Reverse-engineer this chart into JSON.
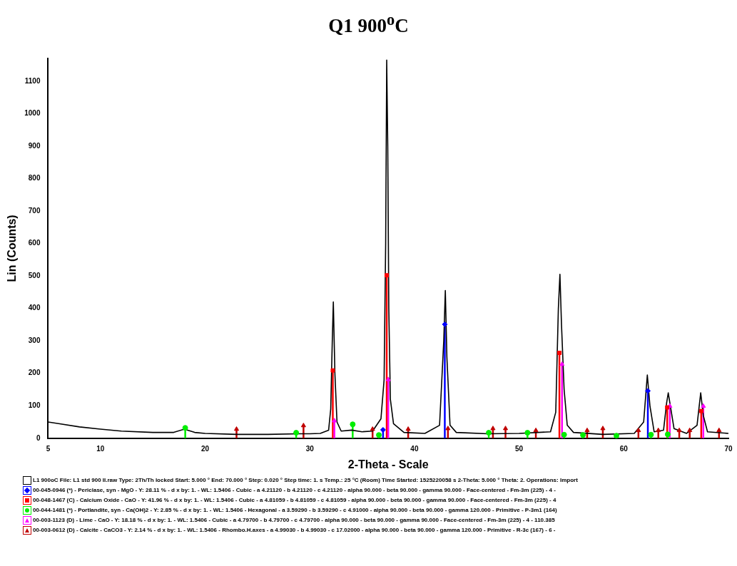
{
  "chart_data": {
    "type": "line",
    "title": "Q1 900$^{o}$C",
    "xlabel": "2-Theta - Scale",
    "ylabel": "Lin (Counts)",
    "xlim": [
      5,
      70
    ],
    "xticks": [
      5,
      10,
      20,
      30,
      40,
      50,
      60,
      70
    ],
    "ylim": [
      0,
      1170
    ],
    "yticks": [
      0,
      100,
      200,
      300,
      400,
      500,
      600,
      700,
      800,
      900,
      1000,
      1100
    ],
    "grid": false,
    "legend": "bottom",
    "series": [
      {
        "name": "L1 900oC   File: L1 std 900 II.raw   Type: 2Th/Th locked   Start: 5.000 °   End: 70.000 °   Step: 0.020 °   Step time: 1. s   Temp.: 25 °C (Room)   Time Started: 1525220058 s   2-Theta: 5.000 °   Theta: 2.   Operations: Import",
        "color": "#000000",
        "marker": "none",
        "x": [
          5,
          6,
          8,
          10,
          12,
          15,
          17,
          18,
          19,
          20,
          23,
          26,
          29,
          30,
          31,
          31.8,
          32,
          32.15,
          32.25,
          32.4,
          32.6,
          33,
          34,
          35,
          36,
          36.8,
          37.1,
          37.25,
          37.35,
          37.45,
          37.55,
          37.7,
          38,
          39,
          41,
          42.4,
          42.8,
          42.95,
          43.1,
          43.4,
          44,
          47,
          50,
          53,
          53.5,
          53.75,
          53.9,
          54.05,
          54.3,
          54.6,
          55.2,
          58,
          61,
          61.9,
          62.25,
          62.5,
          62.9,
          63.8,
          64.1,
          64.25,
          64.5,
          64.8,
          66,
          67,
          67.35,
          67.6,
          68,
          70
        ],
        "values": [
          50,
          45,
          35,
          28,
          22,
          18,
          18,
          28,
          18,
          15,
          12,
          12,
          14,
          14,
          15,
          25,
          90,
          300,
          420,
          200,
          50,
          22,
          25,
          20,
          22,
          60,
          180,
          600,
          1165,
          900,
          400,
          120,
          45,
          18,
          15,
          40,
          300,
          455,
          250,
          40,
          18,
          14,
          15,
          20,
          80,
          400,
          505,
          350,
          150,
          40,
          18,
          12,
          15,
          50,
          195,
          100,
          20,
          25,
          110,
          140,
          90,
          30,
          15,
          40,
          140,
          70,
          20,
          15
        ]
      },
      {
        "name": "00-045-0946 (*) - Periclase, syn - MgO - Y: 28.11 % - d x by: 1. - WL: 1.5406 - Cubic - a 4.21120 - b 4.21120 - c 4.21120 - alpha 90.000 - beta 90.000 - gamma 90.000 - Face-centered - Fm-3m (225) - 4 -",
        "type": "lollipop",
        "color": "#0000ff",
        "marker": "diamond",
        "x": [
          37.0,
          42.9,
          62.3
        ],
        "values": [
          26,
          351,
          146
        ]
      },
      {
        "name": "00-048-1467 (C) - Calcium Oxide - CaO - Y: 41.96 % - d x by: 1. - WL: 1.5406 - Cubic - a 4.81059 - b 4.81059 - c 4.81059 - alpha 90.000 - beta 90.000 - gamma 90.000 - Face-centered - Fm-3m (225) - 4",
        "type": "lollipop",
        "color": "#ff0000",
        "marker": "square",
        "x": [
          32.2,
          37.35,
          53.85,
          64.15,
          67.4
        ],
        "values": [
          209,
          502,
          263,
          95,
          84
        ]
      },
      {
        "name": "00-044-1481 (*) - Portlandite, syn - Ca(OH)2 - Y: 2.85 % - d x by: 1. - WL: 1.5406 - Hexagonal - a 3.59290 - b 3.59290 - c 4.91000 - alpha 90.000 - beta 90.000 - gamma 120.000 - Primitive - P-3m1 (164)",
        "type": "lollipop",
        "color": "#00ee00",
        "marker": "circle",
        "x": [
          18.1,
          28.7,
          34.1,
          36.6,
          47.1,
          50.8,
          54.3,
          56.1,
          59.3,
          62.6,
          64.2
        ],
        "values": [
          32,
          17,
          43,
          10,
          17,
          17,
          11,
          10,
          8,
          11,
          12
        ]
      },
      {
        "name": "00-003-1123 (D) - Lime - CaO - Y: 18.18 % - d x by: 1. - WL: 1.5406 - Cubic - a 4.79700 - b 4.79700 - c 4.79700 - alpha 90.000 - beta 90.000 - gamma 90.000 - Face-centered - Fm-3m (225) - 4 - 110.385",
        "type": "lollipop",
        "color": "#ff00ff",
        "marker": "triangle",
        "x": [
          32.35,
          37.5,
          54.1,
          64.4,
          67.6
        ],
        "values": [
          54,
          181,
          228,
          99,
          99
        ]
      },
      {
        "name": "00-003-0612 (D) - Calcite - CaCO3 - Y: 2.14 % - d x by: 1. - WL: 1.5406 - Rhombo.H.axes - a 4.99030 - b 4.99030 - c 17.02000 - alpha 90.000 - beta 90.000 - gamma 120.000 - Primitive - R-3c (167) - 6 -",
        "type": "lollipop",
        "color": "#c00000",
        "marker": "triangle",
        "x": [
          23.0,
          29.4,
          36.0,
          39.4,
          43.2,
          47.5,
          48.7,
          51.6,
          56.5,
          58.0,
          61.4,
          63.3,
          65.3,
          66.3,
          69.1
        ],
        "values": [
          28,
          39,
          28,
          28,
          30,
          30,
          30,
          24,
          24,
          30,
          24,
          24,
          24,
          24,
          24
        ]
      }
    ]
  }
}
